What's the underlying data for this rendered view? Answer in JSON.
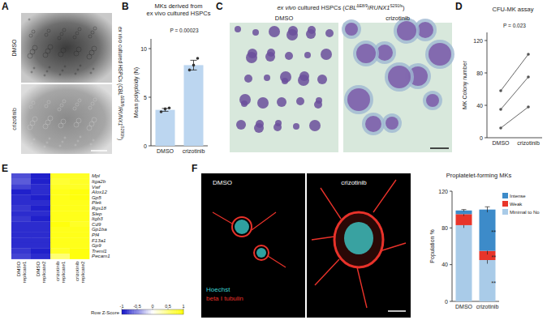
{
  "panels": {
    "A": {
      "label": "A",
      "title_parts": [
        {
          "text": "ex vivo",
          "italic": true
        },
        {
          "text": " cultured HSPCs ("
        },
        {
          "text": "CBL",
          "italic": true
        },
        {
          "text": "ΔE8/9",
          "sup": true
        },
        {
          "text": "/"
        },
        {
          "text": "RUNX1",
          "italic": true
        },
        {
          "text": "S291fs",
          "sup": true
        },
        {
          "text": ")"
        }
      ],
      "images": [
        "DMSO",
        "crizotinib"
      ]
    },
    "C": {
      "label": "C",
      "title_parts": [
        {
          "text": "ex vivo",
          "italic": true
        },
        {
          "text": " cultured HSPCs ("
        },
        {
          "text": "CBL",
          "italic": true
        },
        {
          "text": "ΔE8/9",
          "sup": true
        },
        {
          "text": "/"
        },
        {
          "text": "RUNX1",
          "italic": true
        },
        {
          "text": "S291fs",
          "sup": true
        },
        {
          "text": ")"
        }
      ],
      "images": [
        "DMSO",
        "crizotinib"
      ]
    },
    "F": {
      "label": "F",
      "images": [
        "DMSO",
        "crizotinib"
      ],
      "stains": [
        {
          "name": "Hoechst",
          "color": "#3fd6d6"
        },
        {
          "name": "beta I tubulin",
          "color": "#e8322a"
        }
      ]
    }
  },
  "chart_data": [
    {
      "panel": "B",
      "type": "bar",
      "title": [
        "MKs derived from",
        "ex vivo cultured HSPCs"
      ],
      "y_label": "Mean polyploidy (N)",
      "categories": [
        "DMSO",
        "crizotinib"
      ],
      "values": [
        3.7,
        8.3
      ],
      "errors": [
        0.15,
        0.5
      ],
      "points": [
        [
          3.5,
          3.8,
          3.9
        ],
        [
          7.8,
          8.3,
          9.0
        ]
      ],
      "color": "#bcd6f0",
      "ylim": [
        0,
        11
      ],
      "yticks": [
        0,
        5,
        10
      ],
      "annotations": [
        {
          "text": "P = 0.00023"
        }
      ]
    },
    {
      "panel": "D",
      "type": "line",
      "title": "CFU-MK assay",
      "y_label": "MK Colony number",
      "categories": [
        "DMSO",
        "crizotinib"
      ],
      "series": [
        {
          "values": [
            12,
            38
          ]
        },
        {
          "values": [
            35,
            75
          ]
        },
        {
          "values": [
            58,
            103
          ]
        }
      ],
      "color": "#555555",
      "marker": "circle",
      "ylim": [
        0,
        130
      ],
      "yticks": [
        0,
        40,
        80,
        120
      ],
      "annotations": [
        {
          "text": "P = 0.023"
        }
      ]
    },
    {
      "panel": "E",
      "type": "heatmap",
      "rows": [
        "Mpl",
        "Itga2b",
        "Vwf",
        "Alox12",
        "Gp5",
        "Plek",
        "Rgs18",
        "Slep",
        "Itgb3",
        "Cd9",
        "Gp1ba",
        "Pf4",
        "F13a1",
        "Gp9",
        "Treml1",
        "Pecam1"
      ],
      "columns": [
        "DMSO replicate1",
        "DMSO replicate2",
        "crizotinib replicate1",
        "crizotinib replicate2"
      ],
      "cells": [
        [
          -0.75,
          -0.95,
          0.85,
          0.85
        ],
        [
          -0.7,
          -0.95,
          0.8,
          0.85
        ],
        [
          -0.8,
          -0.9,
          0.85,
          0.85
        ],
        [
          -0.95,
          -0.9,
          0.9,
          0.95
        ],
        [
          -0.9,
          -0.95,
          0.9,
          0.95
        ],
        [
          -0.9,
          -0.9,
          0.9,
          0.9
        ],
        [
          -0.85,
          -0.95,
          0.9,
          0.9
        ],
        [
          -0.9,
          -0.9,
          0.9,
          0.9
        ],
        [
          -0.85,
          -0.95,
          0.9,
          0.9
        ],
        [
          -0.9,
          -0.9,
          0.95,
          0.85
        ],
        [
          -0.9,
          -0.9,
          0.9,
          0.9
        ],
        [
          -0.9,
          -0.9,
          0.9,
          0.9
        ],
        [
          -0.9,
          -0.9,
          0.9,
          0.9
        ],
        [
          -0.9,
          -0.9,
          0.9,
          0.9
        ],
        [
          -0.85,
          -0.95,
          0.85,
          0.95
        ],
        [
          -0.8,
          -0.9,
          0.55,
          0.95
        ]
      ],
      "colors": [
        "#1414c8",
        "#ffffff",
        "#ffff00"
      ],
      "colorbar": {
        "title": "Row Z-Score",
        "range": [
          -1,
          1
        ],
        "ticks": [
          -1,
          -0.5,
          0,
          0.5,
          1
        ]
      }
    },
    {
      "panel": "F",
      "type": "bar",
      "stacked": true,
      "title": "Proplatelet-forming MKs",
      "y_label": "Population %",
      "categories": [
        "DMSO",
        "crizotinib"
      ],
      "series": [
        {
          "name": "Minimal to No",
          "color": "#a9cbe8",
          "values": [
            83,
            45
          ],
          "errors": [
            3,
            4
          ]
        },
        {
          "name": "Weak",
          "color": "#e8352a",
          "values": [
            12,
            10
          ],
          "errors": [
            2,
            4
          ]
        },
        {
          "name": "Intense",
          "color": "#3d8bc9",
          "values": [
            4,
            45
          ],
          "errors": [
            1,
            3
          ]
        }
      ],
      "ylim": [
        0,
        120
      ],
      "yticks": [
        0,
        40,
        80,
        120
      ],
      "legend": "top-right",
      "annotations": [
        {
          "text": "**",
          "series": 0,
          "category": 1
        },
        {
          "text": "**",
          "series": 1,
          "category": 1
        },
        {
          "text": "**",
          "series": 2,
          "category": 1
        }
      ]
    }
  ]
}
